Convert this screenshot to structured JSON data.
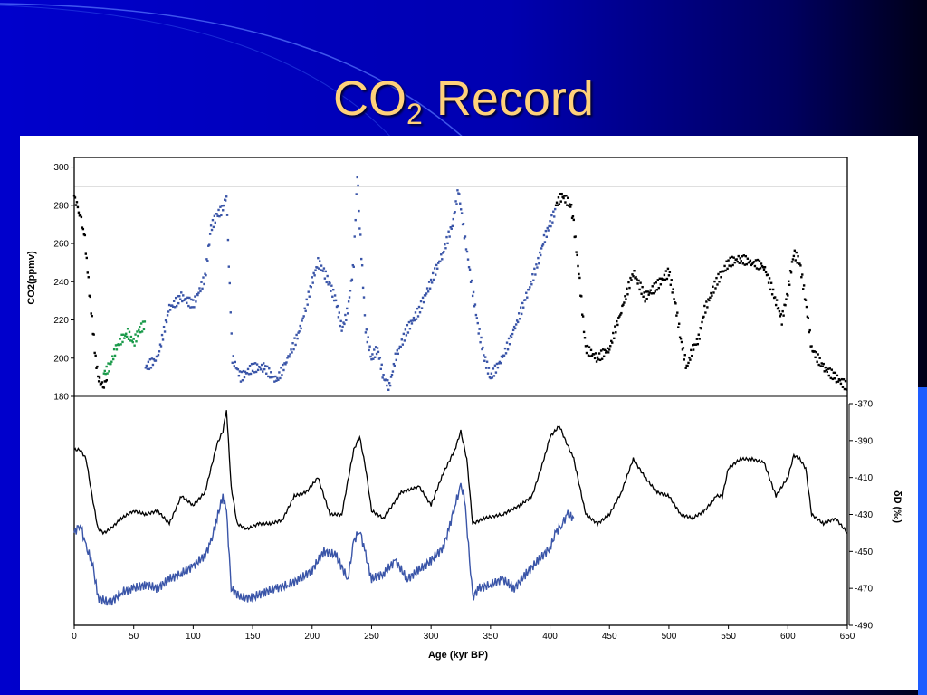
{
  "slide": {
    "title_main": "CO",
    "title_sub": "2",
    "title_rest": " Record"
  },
  "colors": {
    "background": "#0000cc",
    "title": "#ffd17a",
    "black_series": "#000000",
    "blue_series": "#3a55a8",
    "green_series": "#1a9a4a",
    "grid_line": "#000000"
  },
  "chart_data": {
    "type": "scatter",
    "xlabel": "Age (kyr BP)",
    "xlim": [
      0,
      650
    ],
    "x_ticks": [
      0,
      50,
      100,
      150,
      200,
      250,
      300,
      350,
      400,
      450,
      500,
      550,
      600,
      650
    ],
    "panels": [
      {
        "name": "co2",
        "ylabel": "CO2(ppmv)",
        "ylim": [
          180,
          305
        ],
        "y_ticks": [
          180,
          200,
          220,
          240,
          260,
          280,
          300
        ],
        "reference_lines": [
          290,
          180
        ],
        "series": [
          {
            "color": "#000000",
            "x": [
              0,
              3,
              6,
              9,
              12,
              15,
              18,
              20,
              22,
              25,
              28
            ],
            "y": [
              285,
              278,
              272,
              262,
              240,
              220,
              200,
              190,
              187,
              186,
              190
            ]
          },
          {
            "color": "#1a9a4a",
            "x": [
              25,
              30,
              35,
              40,
              45,
              50,
              55,
              60
            ],
            "y": [
              192,
              196,
              205,
              210,
              213,
              208,
              215,
              218
            ]
          },
          {
            "color": "#3a55a8",
            "x": [
              60,
              70,
              80,
              90,
              100,
              110,
              115,
              120,
              125,
              128,
              130,
              133,
              140,
              150,
              160,
              170,
              180,
              190,
              200,
              205,
              210,
              215,
              220,
              225,
              230,
              235,
              238,
              240,
              245,
              250,
              255,
              260,
              265,
              270,
              280,
              290,
              300,
              310,
              318,
              323,
              328,
              335,
              340,
              345,
              350,
              360,
              370,
              380,
              390,
              395,
              400,
              405
            ],
            "y": [
              195,
              200,
              226,
              232,
              228,
              242,
              268,
              275,
              278,
              286,
              250,
              200,
              190,
              195,
              195,
              188,
              200,
              215,
              240,
              250,
              245,
              238,
              230,
              215,
              225,
              250,
              297,
              270,
              215,
              200,
              205,
              190,
              185,
              200,
              215,
              225,
              240,
              255,
              270,
              288,
              265,
              235,
              215,
              200,
              190,
              200,
              215,
              232,
              250,
              262,
              270,
              278
            ]
          },
          {
            "color": "#000000",
            "x": [
              405,
              410,
              415,
              418,
              420,
              425,
              430,
              440,
              450,
              460,
              470,
              480,
              490,
              500,
              505,
              510,
              515,
              520,
              525,
              530,
              540,
              550,
              560,
              570,
              580,
              590,
              595,
              600,
              605,
              610,
              615,
              620,
              630,
              640,
              650
            ],
            "y": [
              280,
              285,
              282,
              278,
              270,
              240,
              205,
              200,
              205,
              225,
              245,
              232,
              238,
              245,
              230,
              210,
              195,
              205,
              210,
              225,
              240,
              250,
              252,
              250,
              248,
              230,
              220,
              235,
              255,
              250,
              230,
              205,
              195,
              190,
              185
            ]
          }
        ]
      },
      {
        "name": "deuterium",
        "ylabel": "δD (‰)",
        "ylim": [
          -490,
          -370
        ],
        "y_ticks": [
          -370,
          -390,
          -410,
          -430,
          -450,
          -470,
          -490
        ],
        "y_tick_labels": [
          "-370",
          "-390",
          "-410",
          "-430",
          "-450",
          "-470",
          "-490"
        ],
        "series": [
          {
            "color": "#000000",
            "x": [
              0,
              5,
              10,
              15,
              20,
              25,
              30,
              40,
              50,
              60,
              70,
              80,
              90,
              100,
              110,
              115,
              120,
              125,
              128,
              132,
              137,
              145,
              155,
              165,
              175,
              185,
              195,
              205,
              215,
              225,
              230,
              235,
              240,
              245,
              250,
              260,
              275,
              290,
              300,
              310,
              320,
              325,
              330,
              335,
              345,
              360,
              375,
              385,
              395,
              400,
              408,
              413,
              420,
              430,
              440,
              450,
              460,
              470,
              480,
              490,
              500,
              510,
              520,
              530,
              540,
              545,
              550,
              560,
              570,
              580,
              590,
              600,
              605,
              610,
              615,
              620,
              630,
              640,
              650
            ],
            "y": [
              -395,
              -395,
              -400,
              -420,
              -438,
              -440,
              -438,
              -432,
              -428,
              -430,
              -428,
              -435,
              -420,
              -425,
              -418,
              -405,
              -392,
              -385,
              -373,
              -415,
              -435,
              -438,
              -435,
              -435,
              -433,
              -420,
              -418,
              -410,
              -430,
              -430,
              -412,
              -395,
              -388,
              -405,
              -428,
              -432,
              -418,
              -415,
              -425,
              -408,
              -395,
              -385,
              -400,
              -435,
              -432,
              -430,
              -425,
              -420,
              -400,
              -388,
              -382,
              -390,
              -400,
              -430,
              -435,
              -430,
              -418,
              -400,
              -410,
              -418,
              -420,
              -430,
              -432,
              -428,
              -420,
              -420,
              -405,
              -400,
              -400,
              -402,
              -420,
              -410,
              -398,
              -400,
              -405,
              -430,
              -435,
              -432,
              -440
            ]
          },
          {
            "color": "#3a55a8",
            "x": [
              0,
              5,
              10,
              15,
              20,
              30,
              40,
              50,
              60,
              70,
              80,
              90,
              100,
              110,
              115,
              120,
              125,
              128,
              132,
              140,
              150,
              160,
              170,
              180,
              190,
              200,
              210,
              220,
              230,
              235,
              240,
              245,
              250,
              260,
              270,
              280,
              290,
              300,
              310,
              315,
              320,
              325,
              328,
              335,
              340,
              350,
              360,
              370,
              380,
              390,
              400,
              405,
              410,
              415,
              420
            ],
            "y": [
              -440,
              -435,
              -448,
              -455,
              -475,
              -478,
              -472,
              -470,
              -468,
              -470,
              -465,
              -462,
              -458,
              -452,
              -445,
              -432,
              -420,
              -428,
              -470,
              -475,
              -475,
              -472,
              -470,
              -468,
              -465,
              -460,
              -450,
              -452,
              -465,
              -445,
              -438,
              -452,
              -465,
              -462,
              -455,
              -465,
              -460,
              -455,
              -448,
              -438,
              -425,
              -415,
              -420,
              -475,
              -470,
              -468,
              -465,
              -470,
              -462,
              -455,
              -448,
              -440,
              -435,
              -430,
              -432
            ]
          }
        ]
      }
    ]
  }
}
